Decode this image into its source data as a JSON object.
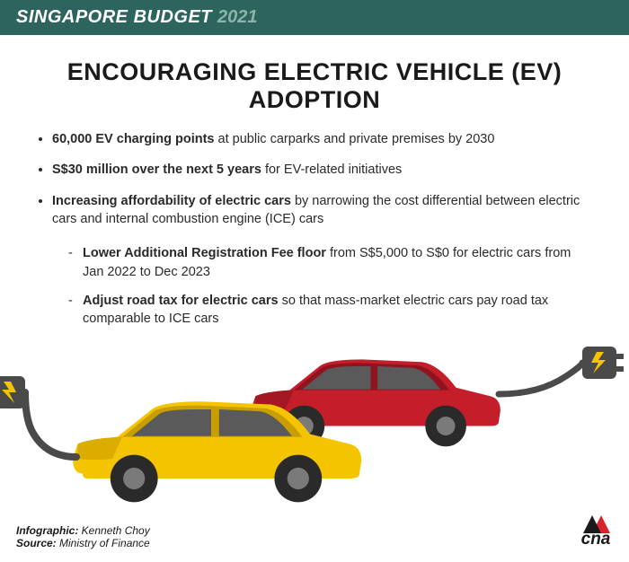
{
  "header": {
    "prefix": "SINGAPORE BUDGET",
    "year": "2021",
    "bg_color": "#2d645e",
    "prefix_color": "#ffffff",
    "year_color": "#8ab5af"
  },
  "title": "ENCOURAGING ELECTRIC VEHICLE (EV) ADOPTION",
  "bullets": [
    {
      "bold": "60,000 EV charging points",
      "rest": " at public carparks and private premises by 2030"
    },
    {
      "bold": "S$30 million over the next 5 years",
      "rest": " for EV-related initiatives"
    },
    {
      "bold": "Increasing affordability of electric cars",
      "rest": " by narrowing the cost differential between electric cars and internal combustion engine (ICE) cars"
    }
  ],
  "sub_bullets": [
    {
      "bold": "Lower Additional Registration Fee floor",
      "rest": " from S$5,000 to S$0 for electric cars from Jan 2022 to Dec 2023"
    },
    {
      "bold": "Adjust road tax for electric cars",
      "rest": " so that mass-market electric cars pay road tax comparable to ICE cars"
    }
  ],
  "illustration": {
    "car_front_color": "#f5c400",
    "car_front_shade": "#c99e00",
    "car_back_color": "#c41e2a",
    "car_back_shade": "#8f1420",
    "wheel_color": "#2a2a2a",
    "wheel_hub": "#7a7a7a",
    "cable_color": "#4a4a4a",
    "plug_color": "#4a4a4a",
    "bolt_color": "#f5c400",
    "window_color": "#5a5a5a"
  },
  "footer": {
    "infographic_label": "Infographic:",
    "infographic_value": " Kenneth Choy",
    "source_label": "Source:",
    "source_value": " Ministry of Finance"
  },
  "logo": {
    "text": "cna",
    "accent_color": "#d8232a"
  }
}
